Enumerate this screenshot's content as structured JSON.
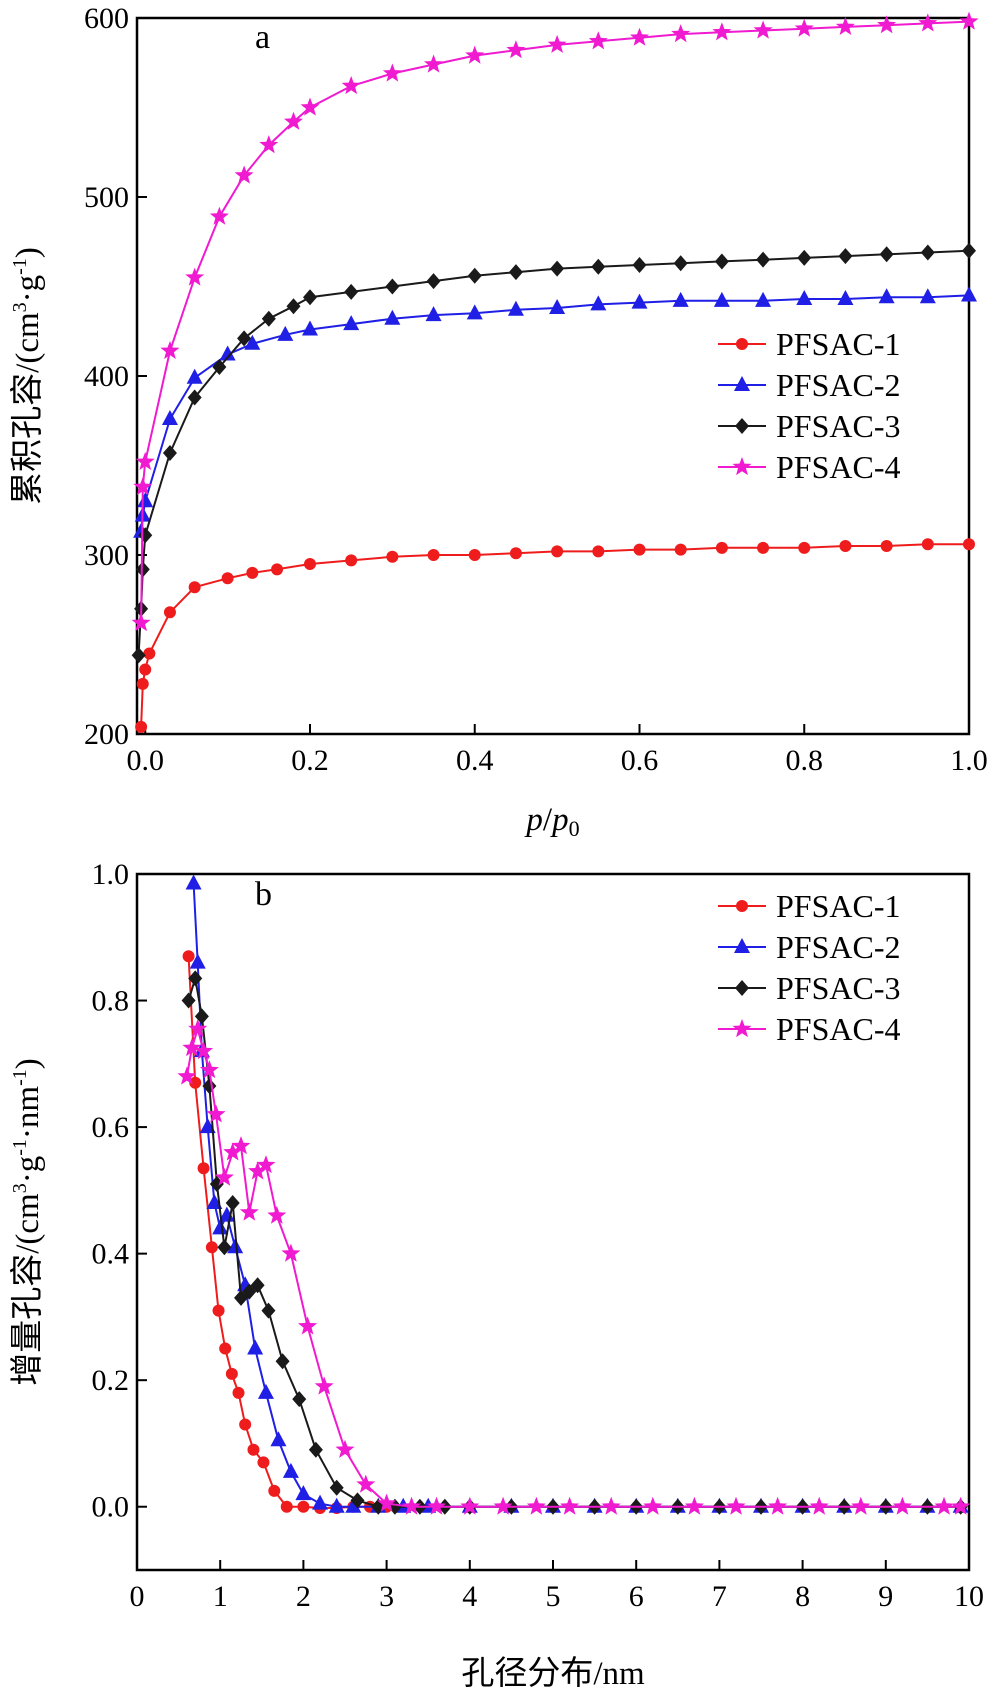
{
  "colors": {
    "PFSAC-1": "#ee1c1c",
    "PFSAC-2": "#1f1fe6",
    "PFSAC-3": "#1a1a1a",
    "PFSAC-4": "#f01ad0"
  },
  "markers": {
    "PFSAC-1": "circle",
    "PFSAC-2": "triangle",
    "PFSAC-3": "diamond",
    "PFSAC-4": "star"
  },
  "chart_data": [
    {
      "type": "line",
      "panel_label": "a",
      "xlabel": "p/p0",
      "ylabel": "累积孔容/(cm3·g-1)",
      "xlim": [
        -0.01,
        1.0
      ],
      "ylim": [
        200,
        600
      ],
      "xticks": [
        "0.0",
        "0.2",
        "0.4",
        "0.6",
        "0.8",
        "1.0"
      ],
      "xtick_values": [
        0,
        0.2,
        0.4,
        0.6,
        0.8,
        1.0
      ],
      "yticks": [
        "200",
        "300",
        "400",
        "500",
        "600"
      ],
      "ytick_values": [
        200,
        300,
        400,
        500,
        600
      ],
      "legend_position": "right-middle",
      "series": [
        {
          "name": "PFSAC-1",
          "x": [
            -0.005,
            -0.003,
            0.0,
            0.005,
            0.03,
            0.06,
            0.1,
            0.13,
            0.16,
            0.2,
            0.25,
            0.3,
            0.35,
            0.4,
            0.45,
            0.5,
            0.55,
            0.6,
            0.65,
            0.7,
            0.75,
            0.8,
            0.85,
            0.9,
            0.95,
            1.0
          ],
          "y": [
            204,
            228,
            236,
            245,
            268,
            282,
            287,
            290,
            292,
            295,
            297,
            299,
            300,
            300,
            301,
            302,
            302,
            303,
            303,
            304,
            304,
            304,
            305,
            305,
            306,
            306
          ]
        },
        {
          "name": "PFSAC-2",
          "x": [
            -0.005,
            -0.003,
            0.0,
            0.03,
            0.06,
            0.1,
            0.13,
            0.17,
            0.2,
            0.25,
            0.3,
            0.35,
            0.4,
            0.45,
            0.5,
            0.55,
            0.6,
            0.65,
            0.7,
            0.75,
            0.8,
            0.85,
            0.9,
            0.95,
            1.0
          ],
          "y": [
            313,
            322,
            330,
            376,
            399,
            412,
            418,
            423,
            426,
            429,
            432,
            434,
            435,
            437,
            438,
            440,
            441,
            442,
            442,
            442,
            443,
            443,
            444,
            444,
            445
          ]
        },
        {
          "name": "PFSAC-3",
          "x": [
            -0.008,
            -0.005,
            -0.003,
            0.0,
            0.03,
            0.06,
            0.09,
            0.12,
            0.15,
            0.18,
            0.2,
            0.25,
            0.3,
            0.35,
            0.4,
            0.45,
            0.5,
            0.55,
            0.6,
            0.65,
            0.7,
            0.75,
            0.8,
            0.85,
            0.9,
            0.95,
            1.0
          ],
          "y": [
            244,
            270,
            292,
            311,
            357,
            388,
            405,
            421,
            432,
            439,
            444,
            447,
            450,
            453,
            456,
            458,
            460,
            461,
            462,
            463,
            464,
            465,
            466,
            467,
            468,
            469,
            470
          ]
        },
        {
          "name": "PFSAC-4",
          "x": [
            -0.005,
            -0.003,
            0.0,
            0.03,
            0.06,
            0.09,
            0.12,
            0.15,
            0.18,
            0.2,
            0.25,
            0.3,
            0.35,
            0.4,
            0.45,
            0.5,
            0.55,
            0.6,
            0.65,
            0.7,
            0.75,
            0.8,
            0.85,
            0.9,
            0.95,
            1.0
          ],
          "y": [
            262,
            338,
            352,
            414,
            455,
            489,
            512,
            529,
            542,
            550,
            562,
            569,
            574,
            579,
            582,
            585,
            587,
            589,
            591,
            592,
            593,
            594,
            595,
            596,
            597,
            598
          ]
        }
      ]
    },
    {
      "type": "line",
      "panel_label": "b",
      "xlabel": "孔径分布/nm",
      "ylabel": "增量孔容/(cm3·g-1·nm-1)",
      "xlim": [
        0,
        10
      ],
      "ylim": [
        -0.1,
        1.0
      ],
      "xticks": [
        "0",
        "1",
        "2",
        "3",
        "4",
        "5",
        "6",
        "7",
        "8",
        "9",
        "10"
      ],
      "xtick_values": [
        0,
        1,
        2,
        3,
        4,
        5,
        6,
        7,
        8,
        9,
        10
      ],
      "yticks": [
        "0.0",
        "0.2",
        "0.4",
        "0.6",
        "0.8",
        "1.0"
      ],
      "ytick_values": [
        0,
        0.2,
        0.4,
        0.6,
        0.8,
        1.0
      ],
      "legend_position": "top-right",
      "series": [
        {
          "name": "PFSAC-1",
          "x": [
            0.62,
            0.7,
            0.8,
            0.9,
            0.98,
            1.06,
            1.14,
            1.22,
            1.3,
            1.4,
            1.52,
            1.65,
            1.8,
            2.0,
            2.2,
            2.4,
            2.6,
            2.8,
            3.0
          ],
          "y": [
            0.87,
            0.67,
            0.535,
            0.41,
            0.31,
            0.25,
            0.21,
            0.18,
            0.13,
            0.09,
            0.07,
            0.025,
            0.0,
            0.0,
            -0.002,
            -0.002,
            0.0,
            0.0,
            0.0
          ]
        },
        {
          "name": "PFSAC-2",
          "x": [
            0.68,
            0.73,
            0.78,
            0.85,
            0.93,
            1.0,
            1.08,
            1.18,
            1.3,
            1.42,
            1.55,
            1.7,
            1.85,
            2.0,
            2.2,
            2.4,
            2.6,
            2.9,
            3.2,
            3.5,
            4.0,
            4.5,
            5.0,
            5.5,
            6.0,
            6.5,
            7.0,
            7.5,
            8.0,
            8.5,
            9.0,
            9.5,
            9.9
          ],
          "y": [
            0.985,
            0.86,
            0.72,
            0.6,
            0.48,
            0.44,
            0.46,
            0.41,
            0.35,
            0.25,
            0.18,
            0.105,
            0.055,
            0.02,
            0.005,
            0.0,
            0.0,
            0.0,
            0.0,
            0.0,
            0.0,
            0.0,
            0.0,
            0.0,
            0.0,
            0.0,
            0.0,
            0.0,
            0.0,
            0.0,
            0.0,
            0.0,
            0.0
          ]
        },
        {
          "name": "PFSAC-3",
          "x": [
            0.62,
            0.7,
            0.78,
            0.87,
            0.96,
            1.05,
            1.15,
            1.25,
            1.35,
            1.45,
            1.58,
            1.75,
            1.95,
            2.15,
            2.4,
            2.65,
            2.9,
            3.1,
            3.4,
            3.7,
            4.0,
            4.5,
            5.0,
            5.5,
            6.0,
            6.5,
            7.0,
            7.5,
            8.0,
            8.5,
            9.0,
            9.5,
            9.9
          ],
          "y": [
            0.8,
            0.835,
            0.775,
            0.665,
            0.51,
            0.41,
            0.48,
            0.33,
            0.34,
            0.35,
            0.31,
            0.23,
            0.17,
            0.09,
            0.03,
            0.01,
            0.0,
            0.0,
            0.0,
            0.0,
            0.0,
            0.0,
            0.0,
            0.0,
            0.0,
            0.0,
            0.0,
            0.0,
            0.0,
            0.0,
            0.0,
            0.0,
            0.0
          ]
        },
        {
          "name": "PFSAC-4",
          "x": [
            0.6,
            0.66,
            0.73,
            0.8,
            0.87,
            0.95,
            1.05,
            1.15,
            1.25,
            1.35,
            1.45,
            1.55,
            1.68,
            1.85,
            2.05,
            2.25,
            2.5,
            2.75,
            3.0,
            3.3,
            3.6,
            4.0,
            4.4,
            4.8,
            5.2,
            5.7,
            6.2,
            6.7,
            7.2,
            7.7,
            8.2,
            8.7,
            9.2,
            9.7,
            9.9
          ],
          "y": [
            0.68,
            0.725,
            0.755,
            0.72,
            0.69,
            0.62,
            0.52,
            0.56,
            0.57,
            0.465,
            0.53,
            0.54,
            0.46,
            0.4,
            0.285,
            0.19,
            0.09,
            0.035,
            0.005,
            0.0,
            0.0,
            0.0,
            0.0,
            0.0,
            0.0,
            0.0,
            0.0,
            0.0,
            0.0,
            0.0,
            0.0,
            0.0,
            0.0,
            0.0,
            0.0
          ]
        }
      ]
    }
  ]
}
